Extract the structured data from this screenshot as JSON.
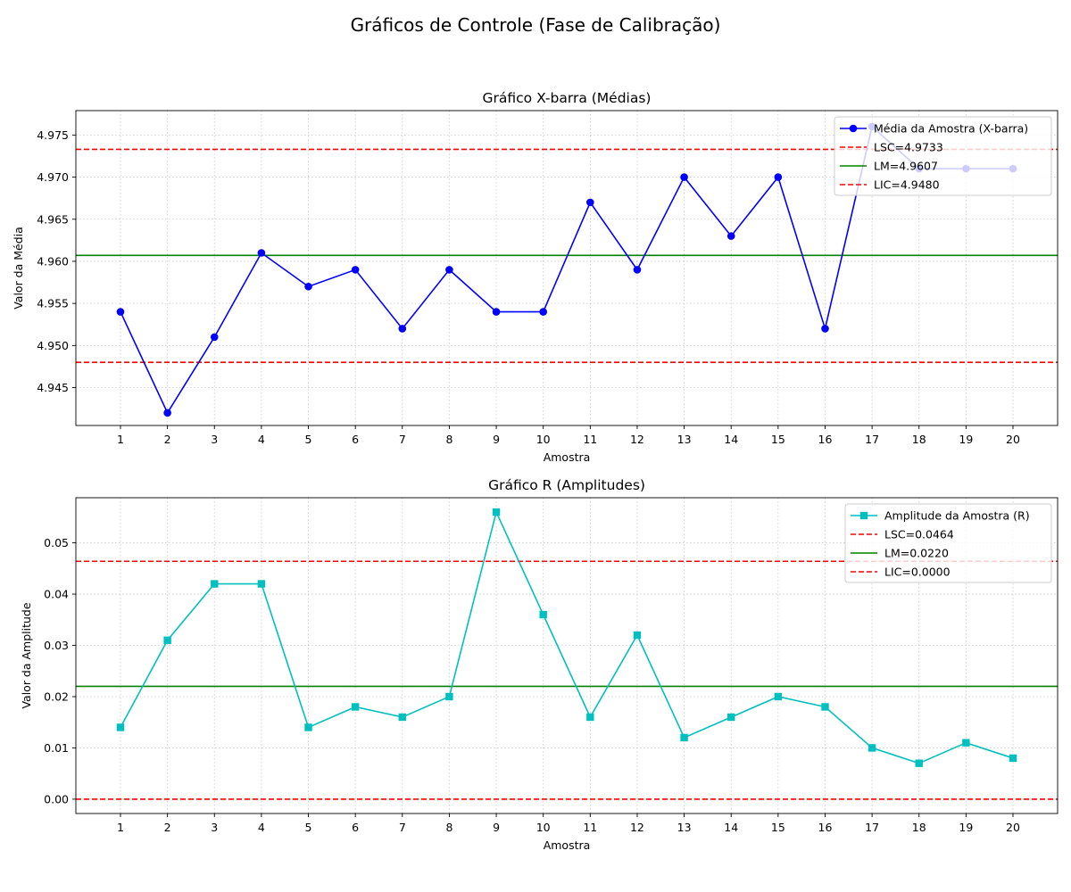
{
  "suptitle": "Gráficos de Controle (Fase de Calibração)",
  "chart_data": [
    {
      "type": "line",
      "title": "Gráfico X-barra (Médias)",
      "xlabel": "Amostra",
      "ylabel": "Valor da Média",
      "x": [
        1,
        2,
        3,
        4,
        5,
        6,
        7,
        8,
        9,
        10,
        11,
        12,
        13,
        14,
        15,
        16,
        17,
        18,
        19,
        20
      ],
      "xlim": [
        0.05,
        20.95
      ],
      "ylim": [
        4.9405,
        4.9779
      ],
      "yticks": [
        "4.945",
        "4.950",
        "4.955",
        "4.960",
        "4.965",
        "4.970",
        "4.975"
      ],
      "series": [
        {
          "name": "Média da Amostra (X-barra)",
          "color": "#0000ff",
          "marker": "circle",
          "values": [
            4.954,
            4.942,
            4.951,
            4.961,
            4.957,
            4.959,
            4.952,
            4.959,
            4.954,
            4.954,
            4.967,
            4.959,
            4.97,
            4.963,
            4.97,
            4.952,
            4.976,
            4.971,
            4.971,
            4.971
          ]
        }
      ],
      "reference_lines": [
        {
          "name": "LSC=4.9733",
          "value": 4.9733,
          "color": "#ff0000",
          "style": "dashed"
        },
        {
          "name": "LM=4.9607",
          "value": 4.9607,
          "color": "#008000",
          "style": "solid"
        },
        {
          "name": "LIC=4.9480",
          "value": 4.948,
          "color": "#ff0000",
          "style": "dashed"
        }
      ],
      "grid": true,
      "legend": "top-right"
    },
    {
      "type": "line",
      "title": "Gráfico R (Amplitudes)",
      "xlabel": "Amostra",
      "ylabel": "Valor da Amplitude",
      "x": [
        1,
        2,
        3,
        4,
        5,
        6,
        7,
        8,
        9,
        10,
        11,
        12,
        13,
        14,
        15,
        16,
        17,
        18,
        19,
        20
      ],
      "xlim": [
        0.05,
        20.95
      ],
      "ylim": [
        -0.0028,
        0.0588
      ],
      "yticks": [
        "0.00",
        "0.01",
        "0.02",
        "0.03",
        "0.04",
        "0.05"
      ],
      "series": [
        {
          "name": "Amplitude da Amostra (R)",
          "color": "#00bfbf",
          "marker": "square",
          "values": [
            0.014,
            0.031,
            0.042,
            0.042,
            0.014,
            0.018,
            0.016,
            0.02,
            0.056,
            0.036,
            0.016,
            0.032,
            0.012,
            0.016,
            0.02,
            0.018,
            0.01,
            0.007,
            0.011,
            0.008
          ]
        }
      ],
      "reference_lines": [
        {
          "name": "LSC=0.0464",
          "value": 0.0464,
          "color": "#ff0000",
          "style": "dashed"
        },
        {
          "name": "LM=0.0220",
          "value": 0.022,
          "color": "#008000",
          "style": "solid"
        },
        {
          "name": "LIC=0.0000",
          "value": 0.0,
          "color": "#ff0000",
          "style": "dashed"
        }
      ],
      "grid": true,
      "legend": "top-right"
    }
  ]
}
